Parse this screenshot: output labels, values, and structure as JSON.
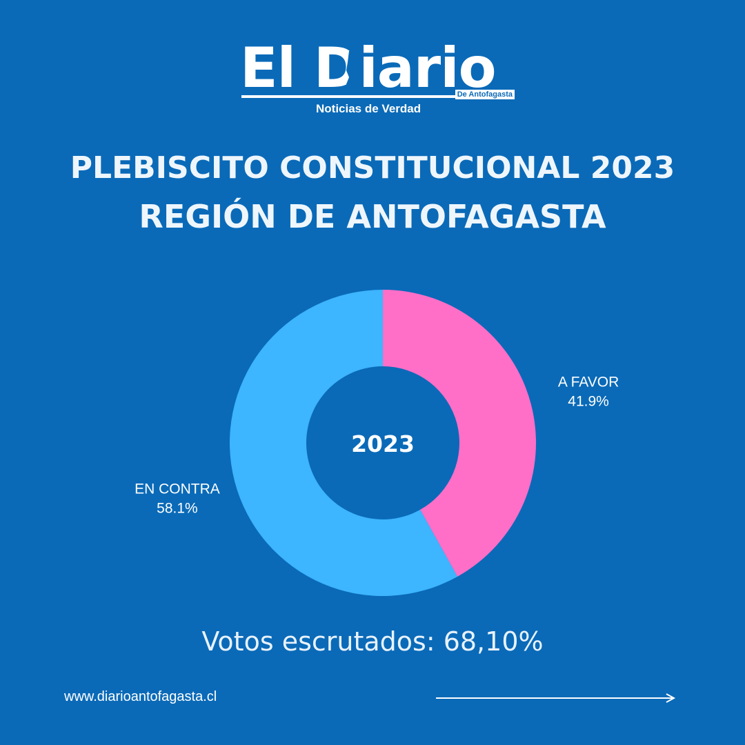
{
  "logo": {
    "title": "El Diario",
    "subtitle": "De Antofagasta",
    "tagline": "Noticias de Verdad"
  },
  "headline": {
    "line1": "PLEBISCITO CONSTITUCIONAL 2023",
    "line2": "REGIÓN DE ANTOFAGASTA"
  },
  "chart_data": {
    "type": "pie",
    "donut": true,
    "center_label": "2023",
    "slices": [
      {
        "label": "A FAVOR",
        "value": 41.9,
        "value_label": "41.9%",
        "color": "#ff6ec7"
      },
      {
        "label": "EN CONTRA",
        "value": 58.1,
        "value_label": "58.1%",
        "color": "#3db5ff"
      }
    ],
    "legend": "none"
  },
  "footer": {
    "votes_text": "Votos escrutados: 68,10%",
    "website": "www.diarioantofagasta.cl"
  },
  "colors": {
    "background": "#0a6ab8",
    "text": "#ffffff"
  },
  "icons": {
    "logo_map": "map-silhouette-icon",
    "footer_arrow": "arrow-right-icon"
  }
}
